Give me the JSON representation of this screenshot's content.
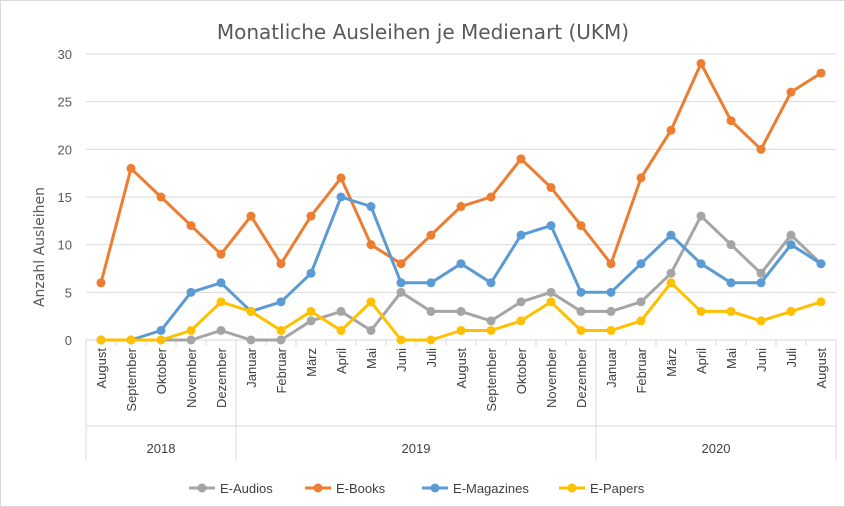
{
  "chart_data": {
    "type": "line",
    "title": "Monatliche Ausleihen je Medienart (UKM)",
    "ylabel": "Anzahl Ausleihen",
    "xlabel": "",
    "ylim": [
      0,
      30
    ],
    "yticks": [
      0,
      5,
      10,
      15,
      20,
      25,
      30
    ],
    "grid": "horizontal",
    "legend_position": "bottom",
    "categories": [
      "August",
      "September",
      "Oktober",
      "November",
      "Dezember",
      "Januar",
      "Februar",
      "März",
      "April",
      "Mai",
      "Juni",
      "Juli",
      "August",
      "September",
      "Oktober",
      "November",
      "Dezember",
      "Januar",
      "Februar",
      "März",
      "April",
      "Mai",
      "Juni",
      "Juli",
      "August"
    ],
    "year_groups": [
      {
        "label": "2018",
        "count": 5
      },
      {
        "label": "2019",
        "count": 12
      },
      {
        "label": "2020",
        "count": 8
      }
    ],
    "series": [
      {
        "name": "E-Audios",
        "color": "#a5a5a5",
        "values": [
          0,
          0,
          0,
          0,
          1,
          0,
          0,
          2,
          3,
          1,
          5,
          3,
          3,
          2,
          4,
          5,
          3,
          3,
          4,
          7,
          13,
          10,
          7,
          11,
          8
        ]
      },
      {
        "name": "E-Books",
        "color": "#ed7d31",
        "values": [
          6,
          18,
          15,
          12,
          9,
          13,
          8,
          13,
          17,
          10,
          8,
          11,
          14,
          15,
          19,
          16,
          12,
          8,
          17,
          22,
          29,
          23,
          20,
          26,
          28
        ]
      },
      {
        "name": "E-Magazines",
        "color": "#5b9bd5",
        "values": [
          0,
          0,
          1,
          5,
          6,
          3,
          4,
          7,
          15,
          14,
          6,
          6,
          8,
          6,
          11,
          12,
          5,
          5,
          8,
          11,
          8,
          6,
          6,
          10,
          8
        ]
      },
      {
        "name": "E-Papers",
        "color": "#ffc000",
        "values": [
          0,
          0,
          0,
          1,
          4,
          3,
          1,
          3,
          1,
          4,
          0,
          0,
          1,
          1,
          2,
          4,
          1,
          1,
          2,
          6,
          3,
          3,
          2,
          3,
          4
        ]
      }
    ]
  }
}
